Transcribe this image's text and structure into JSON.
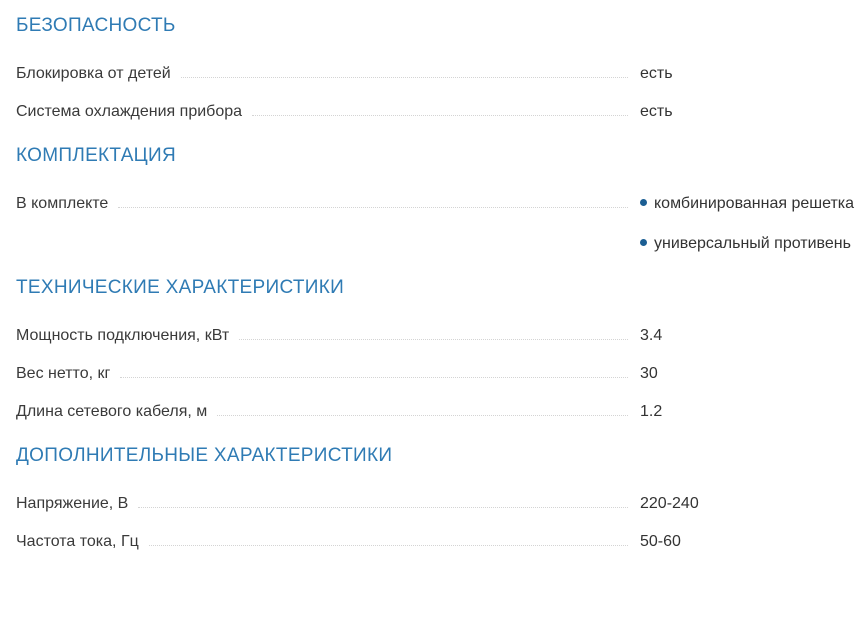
{
  "page": {
    "background": "#ffffff",
    "heading_color": "#2f7bb4",
    "bullet_color": "#1b5e93",
    "text_color": "#333333",
    "leader_color": "#d4d4d4"
  },
  "sections": [
    {
      "title": "БЕЗОПАСНОСТЬ",
      "rows": [
        {
          "label": "Блокировка от детей",
          "value": "есть"
        },
        {
          "label": "Система охлаждения прибора",
          "value": "есть"
        }
      ]
    },
    {
      "title": "КОМПЛЕКТАЦИЯ",
      "rows": [
        {
          "label": "В комплекте",
          "bullets": [
            "комбинированная решетка",
            "универсальный противень"
          ]
        }
      ]
    },
    {
      "title": "ТЕХНИЧЕСКИЕ ХАРАКТЕРИСТИКИ",
      "rows": [
        {
          "label": "Мощность подключения, кВт",
          "value": "3.4"
        },
        {
          "label": "Вес нетто, кг",
          "value": "30"
        },
        {
          "label": "Длина сетевого кабеля, м",
          "value": "1.2"
        }
      ]
    },
    {
      "title": "ДОПОЛНИТЕЛЬНЫЕ ХАРАКТЕРИСТИКИ",
      "rows": [
        {
          "label": "Напряжение, В",
          "value": "220-240"
        },
        {
          "label": "Частота тока, Гц",
          "value": "50-60"
        }
      ]
    }
  ]
}
